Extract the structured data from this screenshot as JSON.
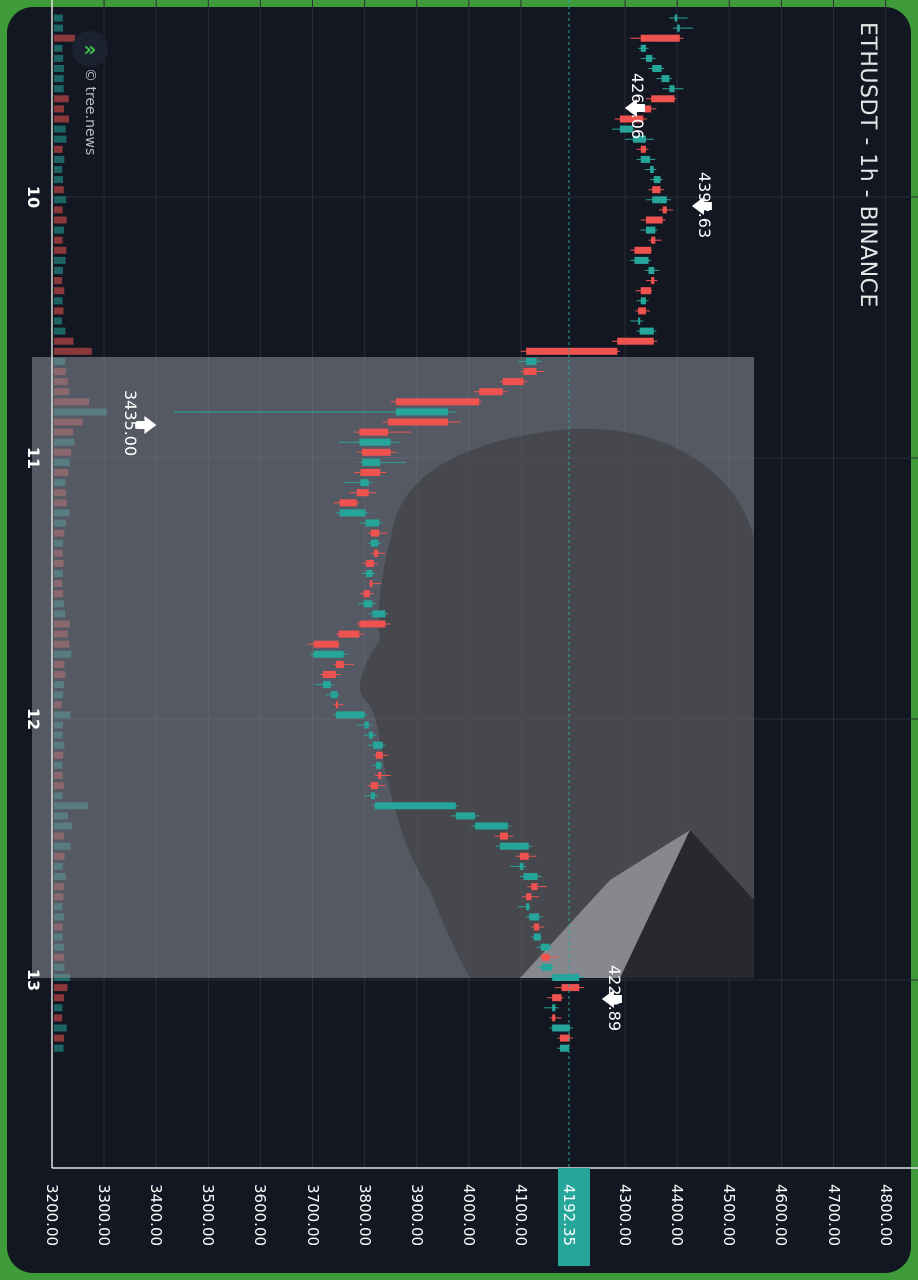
{
  "chart_title": "ETHUSDT - 1h - BINANCE",
  "brand": "© tree.news",
  "colors": {
    "up": "#26a69a",
    "down": "#ef5350",
    "background": "#131722",
    "frame": "#3f9a3a"
  },
  "chart_data": {
    "type": "candlestick",
    "title": "ETHUSDT - 1h - BINANCE",
    "time_axis_labels": [
      "10",
      "11",
      "12",
      "13"
    ],
    "price_axis_labels": [
      "3200.00",
      "3300.00",
      "3400.00",
      "3500.00",
      "3600.00",
      "3700.00",
      "3800.00",
      "3900.00",
      "4000.00",
      "4100.00",
      "4192.35",
      "4300.00",
      "4400.00",
      "4500.00",
      "4600.00",
      "4700.00",
      "4800.00"
    ],
    "price_ticks": [
      3200,
      3300,
      3400,
      3500,
      3600,
      3700,
      3800,
      3900,
      4000,
      4100,
      4300,
      4400,
      4500,
      4600,
      4700,
      4800
    ],
    "last_price": 4192.35,
    "last_price_label": "4192.35",
    "annotations": [
      {
        "label": "4265.06",
        "price": 4265.06
      },
      {
        "label": "4393.63",
        "price": 4393.63
      },
      {
        "label": "3435.00",
        "price": 3435.0
      },
      {
        "label": "4220.89",
        "price": 4220.89
      }
    ],
    "ohlc": [
      [
        4395,
        4420,
        4385,
        4400
      ],
      [
        4400,
        4430,
        4392,
        4405
      ],
      [
        4405,
        4412,
        4310,
        4330
      ],
      [
        4330,
        4345,
        4325,
        4340
      ],
      [
        4340,
        4358,
        4330,
        4352
      ],
      [
        4352,
        4375,
        4345,
        4370
      ],
      [
        4370,
        4390,
        4360,
        4385
      ],
      [
        4385,
        4412,
        4372,
        4395
      ],
      [
        4395,
        4398,
        4340,
        4350
      ],
      [
        4350,
        4360,
        4325,
        4335
      ],
      [
        4335,
        4342,
        4280,
        4290
      ],
      [
        4290,
        4318,
        4275,
        4315
      ],
      [
        4315,
        4355,
        4300,
        4340
      ],
      [
        4340,
        4345,
        4322,
        4330
      ],
      [
        4330,
        4358,
        4322,
        4348
      ],
      [
        4348,
        4360,
        4338,
        4355
      ],
      [
        4355,
        4372,
        4348,
        4368
      ],
      [
        4368,
        4375,
        4345,
        4352
      ],
      [
        4352,
        4388,
        4340,
        4380
      ],
      [
        4380,
        4392,
        4365,
        4372
      ],
      [
        4372,
        4378,
        4330,
        4340
      ],
      [
        4340,
        4362,
        4330,
        4358
      ],
      [
        4358,
        4370,
        4345,
        4350
      ],
      [
        4350,
        4352,
        4310,
        4318
      ],
      [
        4318,
        4350,
        4310,
        4345
      ],
      [
        4345,
        4365,
        4338,
        4356
      ],
      [
        4356,
        4362,
        4340,
        4350
      ],
      [
        4350,
        4352,
        4320,
        4330
      ],
      [
        4330,
        4345,
        4322,
        4340
      ],
      [
        4340,
        4348,
        4320,
        4325
      ],
      [
        4325,
        4335,
        4310,
        4328
      ],
      [
        4328,
        4360,
        4322,
        4355
      ],
      [
        4355,
        4362,
        4275,
        4285
      ],
      [
        4285,
        4290,
        4100,
        4110
      ],
      [
        4110,
        4140,
        4095,
        4130
      ],
      [
        4130,
        4145,
        4100,
        4105
      ],
      [
        4105,
        4112,
        4060,
        4065
      ],
      [
        4065,
        4075,
        4010,
        4020
      ],
      [
        4020,
        4025,
        3850,
        3860
      ],
      [
        3860,
        3975,
        3435,
        3960
      ],
      [
        3960,
        3985,
        3835,
        3845
      ],
      [
        3845,
        3890,
        3780,
        3790
      ],
      [
        3790,
        3868,
        3750,
        3850
      ],
      [
        3850,
        3862,
        3785,
        3795
      ],
      [
        3795,
        3880,
        3790,
        3830
      ],
      [
        3830,
        3842,
        3780,
        3792
      ],
      [
        3792,
        3815,
        3760,
        3808
      ],
      [
        3808,
        3822,
        3770,
        3785
      ],
      [
        3785,
        3790,
        3740,
        3752
      ],
      [
        3752,
        3808,
        3745,
        3802
      ],
      [
        3802,
        3835,
        3790,
        3828
      ],
      [
        3828,
        3845,
        3805,
        3812
      ],
      [
        3812,
        3832,
        3805,
        3826
      ],
      [
        3826,
        3840,
        3812,
        3818
      ],
      [
        3818,
        3825,
        3795,
        3803
      ],
      [
        3803,
        3820,
        3795,
        3815
      ],
      [
        3815,
        3832,
        3808,
        3810
      ],
      [
        3810,
        3818,
        3790,
        3798
      ],
      [
        3798,
        3822,
        3788,
        3815
      ],
      [
        3815,
        3845,
        3808,
        3840
      ],
      [
        3840,
        3850,
        3785,
        3790
      ],
      [
        3790,
        3798,
        3745,
        3750
      ],
      [
        3750,
        3752,
        3690,
        3702
      ],
      [
        3702,
        3768,
        3695,
        3760
      ],
      [
        3760,
        3780,
        3740,
        3745
      ],
      [
        3745,
        3755,
        3715,
        3720
      ],
      [
        3720,
        3740,
        3705,
        3735
      ],
      [
        3735,
        3752,
        3725,
        3748
      ],
      [
        3748,
        3760,
        3740,
        3745
      ],
      [
        3745,
        3805,
        3740,
        3800
      ],
      [
        3800,
        3815,
        3785,
        3808
      ],
      [
        3808,
        3822,
        3798,
        3816
      ],
      [
        3816,
        3840,
        3805,
        3835
      ],
      [
        3835,
        3845,
        3818,
        3822
      ],
      [
        3822,
        3835,
        3815,
        3832
      ],
      [
        3832,
        3850,
        3820,
        3826
      ],
      [
        3826,
        3840,
        3805,
        3812
      ],
      [
        3812,
        3825,
        3800,
        3820
      ],
      [
        3820,
        3980,
        3815,
        3975
      ],
      [
        3975,
        4020,
        3965,
        4012
      ],
      [
        4012,
        4080,
        4005,
        4075
      ],
      [
        4075,
        4085,
        4050,
        4060
      ],
      [
        4060,
        4122,
        4052,
        4115
      ],
      [
        4115,
        4130,
        4090,
        4098
      ],
      [
        4098,
        4110,
        4080,
        4105
      ],
      [
        4105,
        4140,
        4098,
        4132
      ],
      [
        4132,
        4150,
        4112,
        4120
      ],
      [
        4120,
        4135,
        4102,
        4110
      ],
      [
        4110,
        4118,
        4094,
        4116
      ],
      [
        4116,
        4142,
        4110,
        4135
      ],
      [
        4135,
        4145,
        4120,
        4125
      ],
      [
        4125,
        4140,
        4120,
        4138
      ],
      [
        4138,
        4160,
        4130,
        4155
      ],
      [
        4155,
        4172,
        4135,
        4140
      ],
      [
        4140,
        4165,
        4132,
        4160
      ],
      [
        4160,
        4222,
        4155,
        4212
      ],
      [
        4212,
        4221,
        4165,
        4178
      ],
      [
        4178,
        4182,
        4150,
        4160
      ],
      [
        4160,
        4172,
        4145,
        4166
      ],
      [
        4166,
        4178,
        4155,
        4160
      ],
      [
        4160,
        4200,
        4155,
        4194
      ],
      [
        4194,
        4200,
        4170,
        4175
      ],
      [
        4175,
        4195,
        4170,
        4192
      ]
    ]
  }
}
